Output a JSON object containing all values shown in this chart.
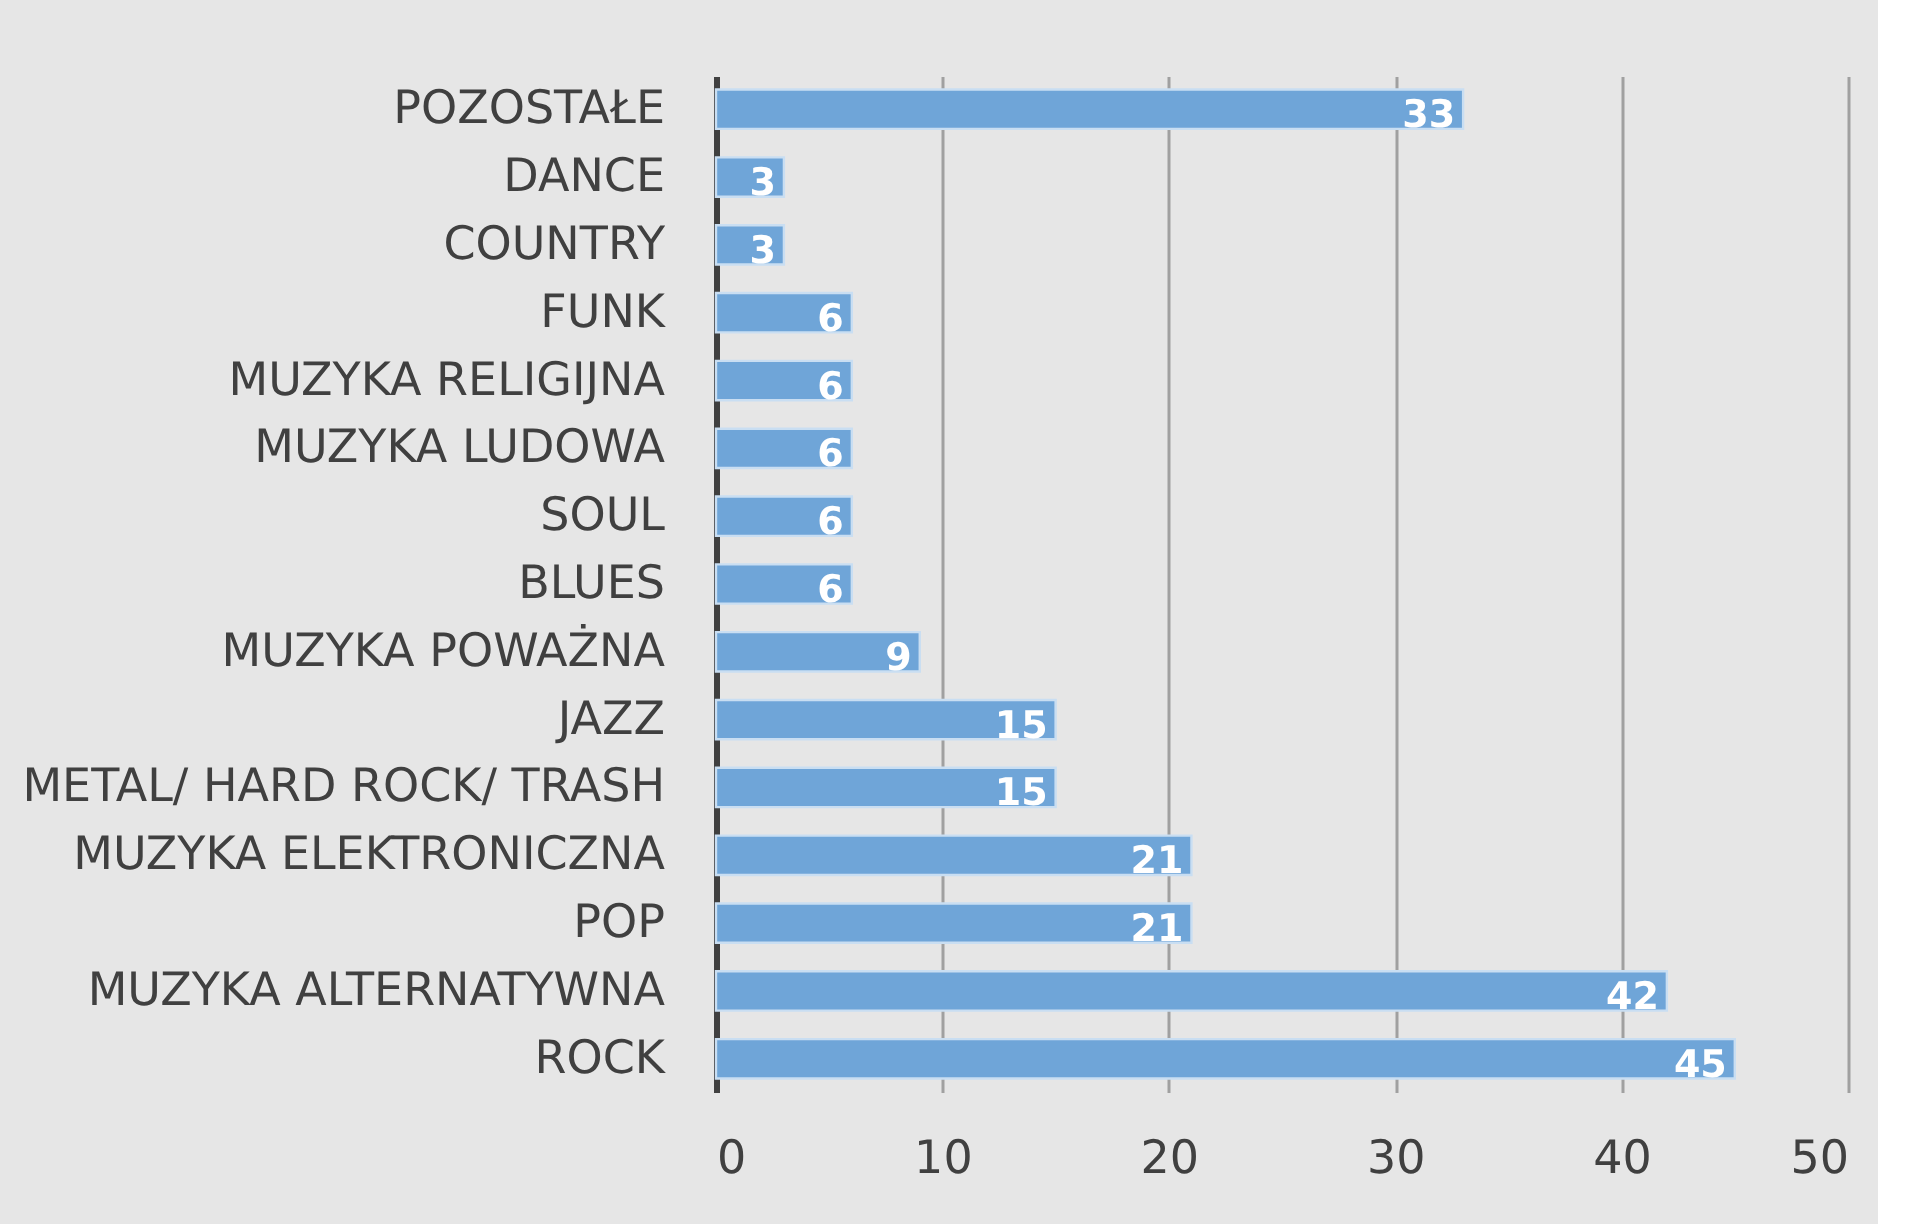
{
  "chart_data": {
    "type": "bar",
    "orientation": "horizontal",
    "categories": [
      "POZOSTAŁE",
      "DANCE",
      "COUNTRY",
      "FUNK",
      "MUZYKA RELIGIJNA",
      "MUZYKA LUDOWA",
      "SOUL",
      "BLUES",
      "MUZYKA POWAŻNA",
      "JAZZ",
      "METAL/ HARD ROCK/ TRASH",
      "MUZYKA ELEKTRONICZNA",
      "POP",
      "MUZYKA ALTERNATYWNA",
      "ROCK"
    ],
    "values": [
      33,
      3,
      3,
      6,
      6,
      6,
      6,
      6,
      9,
      15,
      15,
      21,
      21,
      42,
      45
    ],
    "color": "#6fa5d8",
    "xlim": [
      0,
      50
    ],
    "xticks": [
      0,
      10,
      20,
      30,
      40,
      50
    ],
    "grid": "x",
    "data_labels": true
  }
}
